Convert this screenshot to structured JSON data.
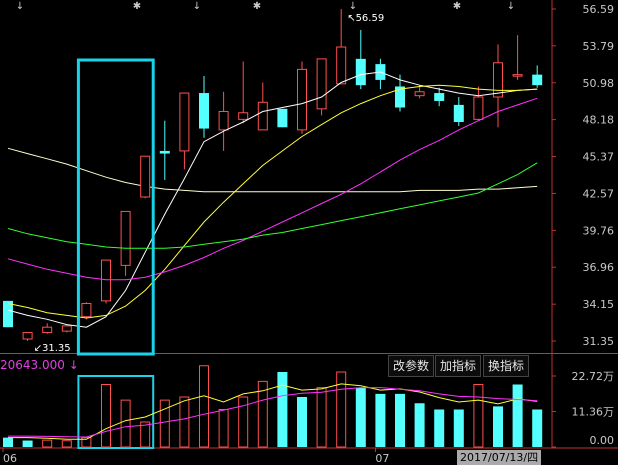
{
  "toolbar": {
    "modify_params": "改参数",
    "add_indicator": "加指标",
    "switch_indicator": "换指标"
  },
  "volume_readout": "20643.000 ↓",
  "date_label": "2017/07/13/四",
  "colors": {
    "background": "#000000",
    "up": "#ff5050",
    "down": "#54ffff",
    "axis": "#c83232",
    "tick_text": "#c8c8c8",
    "highlight_box": "#19d3e8",
    "ma5": "#ffffff",
    "ma10": "#ffff33",
    "ma20": "#ff33ff",
    "ma60": "#33ff33",
    "ma120": "#ffffcc"
  },
  "chart_data": [
    {
      "type": "candlestick",
      "name": "price",
      "y_ticks": [
        56.59,
        53.79,
        50.98,
        48.18,
        45.37,
        42.57,
        39.76,
        36.96,
        34.15,
        31.35
      ],
      "x_tick_labels": [
        {
          "label": "06",
          "index": 0
        },
        {
          "label": "07",
          "index": 19
        }
      ],
      "annotations": [
        {
          "text": "56.59",
          "type": "high",
          "index": 17
        },
        {
          "text": "31.35",
          "type": "low",
          "index": 1
        }
      ],
      "highlight_range": [
        4,
        7
      ],
      "candles": [
        {
          "o": 34.4,
          "c": 32.4,
          "h": 34.4,
          "l": 32.4
        },
        {
          "o": 31.5,
          "c": 32.0,
          "h": 32.0,
          "l": 31.35
        },
        {
          "o": 32.0,
          "c": 32.4,
          "h": 32.7,
          "l": 31.9
        },
        {
          "o": 32.1,
          "c": 32.5,
          "h": 32.6,
          "l": 32.0
        },
        {
          "o": 33.2,
          "c": 34.2,
          "h": 34.3,
          "l": 33.0
        },
        {
          "o": 34.4,
          "c": 37.5,
          "h": 37.5,
          "l": 34.2
        },
        {
          "o": 37.1,
          "c": 41.2,
          "h": 41.2,
          "l": 36.3
        },
        {
          "o": 42.3,
          "c": 45.4,
          "h": 45.4,
          "l": 42.2
        },
        {
          "o": 45.8,
          "c": 45.6,
          "h": 48.1,
          "l": 43.6
        },
        {
          "o": 45.8,
          "c": 50.2,
          "h": 50.2,
          "l": 44.4
        },
        {
          "o": 50.2,
          "c": 47.5,
          "h": 51.5,
          "l": 46.8
        },
        {
          "o": 47.4,
          "c": 48.8,
          "h": 50.3,
          "l": 45.8
        },
        {
          "o": 48.2,
          "c": 48.7,
          "h": 52.6,
          "l": 47.9
        },
        {
          "o": 47.4,
          "c": 49.5,
          "h": 51.0,
          "l": 47.4
        },
        {
          "o": 49.0,
          "c": 47.6,
          "h": 49.0,
          "l": 47.6
        },
        {
          "o": 47.4,
          "c": 52.0,
          "h": 52.6,
          "l": 47.1
        },
        {
          "o": 49.0,
          "c": 52.8,
          "h": 52.8,
          "l": 48.5
        },
        {
          "o": 50.9,
          "c": 53.7,
          "h": 56.59,
          "l": 50.9
        },
        {
          "o": 52.8,
          "c": 50.8,
          "h": 55.0,
          "l": 50.5
        },
        {
          "o": 52.4,
          "c": 51.2,
          "h": 52.8,
          "l": 50.5
        },
        {
          "o": 50.7,
          "c": 49.1,
          "h": 51.6,
          "l": 48.8
        },
        {
          "o": 50.0,
          "c": 50.3,
          "h": 50.8,
          "l": 49.8
        },
        {
          "o": 50.2,
          "c": 49.6,
          "h": 50.6,
          "l": 49.2
        },
        {
          "o": 49.3,
          "c": 48.0,
          "h": 49.9,
          "l": 47.7
        },
        {
          "o": 48.2,
          "c": 49.9,
          "h": 50.7,
          "l": 48.1
        },
        {
          "o": 49.9,
          "c": 52.5,
          "h": 53.9,
          "l": 47.6
        },
        {
          "o": 51.6,
          "c": 51.6,
          "h": 54.6,
          "l": 51.2
        },
        {
          "o": 51.6,
          "c": 50.8,
          "h": 52.3,
          "l": 50.6
        }
      ],
      "ma_lines": [
        {
          "key": "ma5",
          "values": [
            33.7,
            33.3,
            33.0,
            32.6,
            32.4,
            33.2,
            35.2,
            38.1,
            41.0,
            43.7,
            46.5,
            47.3,
            48.0,
            48.8,
            49.1,
            49.4,
            49.9,
            51.0,
            51.6,
            51.8,
            51.2,
            50.8,
            50.5,
            50.2,
            50.0,
            50.2,
            50.4,
            50.5
          ]
        },
        {
          "key": "ma10",
          "values": [
            34.2,
            33.9,
            33.5,
            33.3,
            33.1,
            33.3,
            34.0,
            35.2,
            36.8,
            38.6,
            40.4,
            41.9,
            43.3,
            44.7,
            45.8,
            46.9,
            47.8,
            48.7,
            49.4,
            50.0,
            50.5,
            50.7,
            50.8,
            50.7,
            50.5,
            50.4,
            50.4,
            50.5
          ]
        },
        {
          "key": "ma20",
          "values": [
            37.6,
            37.2,
            36.8,
            36.5,
            36.2,
            36.0,
            36.0,
            36.2,
            36.6,
            37.1,
            37.7,
            38.4,
            39.0,
            39.7,
            40.4,
            41.1,
            41.8,
            42.5,
            43.3,
            44.2,
            45.1,
            45.9,
            46.6,
            47.4,
            48.1,
            48.8,
            49.3,
            49.8
          ]
        },
        {
          "key": "ma60",
          "values": [
            39.9,
            39.5,
            39.2,
            38.9,
            38.7,
            38.5,
            38.4,
            38.4,
            38.4,
            38.5,
            38.7,
            38.9,
            39.1,
            39.4,
            39.6,
            39.9,
            40.2,
            40.5,
            40.8,
            41.1,
            41.4,
            41.7,
            42.0,
            42.3,
            42.6,
            43.3,
            44.0,
            44.9
          ]
        },
        {
          "key": "ma120",
          "values": [
            46.0,
            45.6,
            45.2,
            44.8,
            44.3,
            43.8,
            43.4,
            43.1,
            42.9,
            42.8,
            42.7,
            42.7,
            42.7,
            42.7,
            42.7,
            42.7,
            42.7,
            42.7,
            42.7,
            42.7,
            42.7,
            42.8,
            42.8,
            42.8,
            42.9,
            42.9,
            43.0,
            43.1
          ]
        }
      ]
    },
    {
      "type": "bar",
      "name": "volume",
      "y_ticks": [
        "22.72万",
        "11.36万",
        "0.00"
      ],
      "ylim": [
        0,
        227200
      ],
      "values": [
        30000,
        20643,
        22000,
        20000,
        30000,
        200000,
        150000,
        80000,
        150000,
        160000,
        260000,
        120000,
        160000,
        210000,
        240000,
        160000,
        190000,
        240000,
        190000,
        170000,
        170000,
        140000,
        120000,
        120000,
        200000,
        130000,
        200000,
        120000
      ],
      "directions": [
        "down",
        "down",
        "up",
        "up",
        "up",
        "up",
        "up",
        "up",
        "up",
        "up",
        "up",
        "up",
        "up",
        "up",
        "down",
        "down",
        "up",
        "up",
        "down",
        "down",
        "down",
        "down",
        "down",
        "down",
        "up",
        "down",
        "down",
        "down"
      ],
      "ma_lines": [
        {
          "key": "ma5",
          "values": [
            30000,
            30000,
            28000,
            25000,
            24500,
            58600,
            84500,
            96000,
            122000,
            148000,
            164000,
            144000,
            170000,
            180000,
            198000,
            182000,
            186000,
            202000,
            196000,
            182000,
            186000,
            176000,
            158000,
            144000,
            150000,
            138000,
            154000,
            146000
          ]
        },
        {
          "key": "ma10",
          "values": [
            35000,
            35000,
            34000,
            33000,
            32000,
            50000,
            65000,
            70000,
            80000,
            90000,
            105000,
            118000,
            132000,
            150000,
            164000,
            172000,
            175000,
            185000,
            190000,
            190000,
            185000,
            180000,
            170000,
            162000,
            160000,
            155000,
            152000,
            148000
          ]
        }
      ]
    }
  ]
}
